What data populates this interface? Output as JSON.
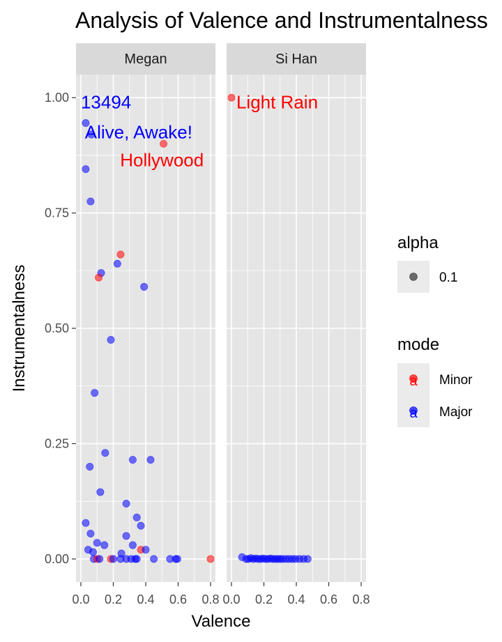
{
  "chart_data": {
    "type": "scatter",
    "title": "Analysis of Valence and Instrumentalness",
    "xlabel": "Valence",
    "ylabel": "Instrumentalness",
    "xlim": [
      -0.03,
      0.83
    ],
    "ylim": [
      -0.05,
      1.05
    ],
    "x_ticks": [
      "0.0",
      "0.2",
      "0.4",
      "0.6",
      "0.8"
    ],
    "x_tick_values": [
      0,
      0.2,
      0.4,
      0.6,
      0.8
    ],
    "y_ticks": [
      "0.00",
      "0.25",
      "0.50",
      "0.75",
      "1.00"
    ],
    "y_tick_values": [
      0,
      0.25,
      0.5,
      0.75,
      1.0
    ],
    "grid": true,
    "colors": {
      "Minor": "#ff0000",
      "Major": "#0000ff",
      "panel_bg": "#e5e5e5",
      "strip_bg": "#d9d9d9"
    },
    "legend": {
      "placement": "right",
      "alpha_title": "alpha",
      "alpha_label": "0.1",
      "mode_title": "mode",
      "mode_labels": [
        "Minor",
        "Major"
      ],
      "key_glyph": "a"
    },
    "facets": [
      {
        "name": "Megan",
        "points": [
          {
            "x": 0.03,
            "y": 0.945,
            "mode": "Major"
          },
          {
            "x": 0.065,
            "y": 0.92,
            "mode": "Major"
          },
          {
            "x": 0.51,
            "y": 0.9,
            "mode": "Minor"
          },
          {
            "x": 0.03,
            "y": 0.845,
            "mode": "Major"
          },
          {
            "x": 0.06,
            "y": 0.775,
            "mode": "Major"
          },
          {
            "x": 0.245,
            "y": 0.66,
            "mode": "Minor"
          },
          {
            "x": 0.225,
            "y": 0.64,
            "mode": "Major"
          },
          {
            "x": 0.125,
            "y": 0.62,
            "mode": "Major"
          },
          {
            "x": 0.11,
            "y": 0.61,
            "mode": "Minor"
          },
          {
            "x": 0.39,
            "y": 0.59,
            "mode": "Major"
          },
          {
            "x": 0.185,
            "y": 0.475,
            "mode": "Major"
          },
          {
            "x": 0.085,
            "y": 0.36,
            "mode": "Major"
          },
          {
            "x": 0.15,
            "y": 0.23,
            "mode": "Major"
          },
          {
            "x": 0.32,
            "y": 0.215,
            "mode": "Major"
          },
          {
            "x": 0.43,
            "y": 0.215,
            "mode": "Major"
          },
          {
            "x": 0.055,
            "y": 0.2,
            "mode": "Major"
          },
          {
            "x": 0.12,
            "y": 0.145,
            "mode": "Major"
          },
          {
            "x": 0.28,
            "y": 0.12,
            "mode": "Major"
          },
          {
            "x": 0.345,
            "y": 0.09,
            "mode": "Major"
          },
          {
            "x": 0.03,
            "y": 0.078,
            "mode": "Major"
          },
          {
            "x": 0.37,
            "y": 0.072,
            "mode": "Major"
          },
          {
            "x": 0.06,
            "y": 0.055,
            "mode": "Major"
          },
          {
            "x": 0.28,
            "y": 0.05,
            "mode": "Major"
          },
          {
            "x": 0.1,
            "y": 0.035,
            "mode": "Major"
          },
          {
            "x": 0.145,
            "y": 0.03,
            "mode": "Major"
          },
          {
            "x": 0.32,
            "y": 0.03,
            "mode": "Major"
          },
          {
            "x": 0.37,
            "y": 0.02,
            "mode": "Minor"
          },
          {
            "x": 0.4,
            "y": 0.02,
            "mode": "Major"
          },
          {
            "x": 0.045,
            "y": 0.02,
            "mode": "Major"
          },
          {
            "x": 0.075,
            "y": 0.015,
            "mode": "Major"
          },
          {
            "x": 0.25,
            "y": 0.012,
            "mode": "Major"
          },
          {
            "x": 0.08,
            "y": 0.0,
            "mode": "Major"
          },
          {
            "x": 0.1,
            "y": 0.0,
            "mode": "Minor"
          },
          {
            "x": 0.115,
            "y": 0.0,
            "mode": "Major"
          },
          {
            "x": 0.185,
            "y": 0.0,
            "mode": "Minor"
          },
          {
            "x": 0.2,
            "y": 0.0,
            "mode": "Major"
          },
          {
            "x": 0.245,
            "y": 0.0,
            "mode": "Major"
          },
          {
            "x": 0.28,
            "y": 0.0,
            "mode": "Major"
          },
          {
            "x": 0.31,
            "y": 0.0,
            "mode": "Major"
          },
          {
            "x": 0.335,
            "y": 0.0,
            "mode": "Major"
          },
          {
            "x": 0.345,
            "y": 0.0,
            "mode": "Major"
          },
          {
            "x": 0.45,
            "y": 0.0,
            "mode": "Major"
          },
          {
            "x": 0.55,
            "y": 0.0,
            "mode": "Major"
          },
          {
            "x": 0.585,
            "y": 0.0,
            "mode": "Major"
          },
          {
            "x": 0.595,
            "y": 0.0,
            "mode": "Major"
          },
          {
            "x": 0.8,
            "y": 0.0,
            "mode": "Minor"
          }
        ],
        "annotations": [
          {
            "text": "13494",
            "x": 0.0,
            "y": 0.99,
            "color": "#0000ff",
            "anchor": "start"
          },
          {
            "text": "Alive, Awake!",
            "x": 0.025,
            "y": 0.925,
            "color": "#0000ff",
            "anchor": "start"
          },
          {
            "text": "Hollywood",
            "x": 0.5,
            "y": 0.865,
            "color": "#ff0000",
            "anchor": "middle"
          }
        ]
      },
      {
        "name": "Si Han",
        "points": [
          {
            "x": 0.0,
            "y": 1.0,
            "mode": "Minor"
          },
          {
            "x": 0.065,
            "y": 0.004,
            "mode": "Major"
          },
          {
            "x": 0.09,
            "y": 0.0,
            "mode": "Major"
          },
          {
            "x": 0.105,
            "y": 0.0,
            "mode": "Major"
          },
          {
            "x": 0.12,
            "y": 0.002,
            "mode": "Major"
          },
          {
            "x": 0.135,
            "y": 0.0,
            "mode": "Major"
          },
          {
            "x": 0.15,
            "y": 0.001,
            "mode": "Major"
          },
          {
            "x": 0.165,
            "y": 0.0,
            "mode": "Major"
          },
          {
            "x": 0.18,
            "y": 0.0,
            "mode": "Major"
          },
          {
            "x": 0.195,
            "y": 0.001,
            "mode": "Major"
          },
          {
            "x": 0.21,
            "y": 0.0,
            "mode": "Major"
          },
          {
            "x": 0.225,
            "y": 0.0,
            "mode": "Major"
          },
          {
            "x": 0.24,
            "y": 0.001,
            "mode": "Major"
          },
          {
            "x": 0.255,
            "y": 0.0,
            "mode": "Major"
          },
          {
            "x": 0.27,
            "y": 0.0,
            "mode": "Major"
          },
          {
            "x": 0.285,
            "y": 0.0,
            "mode": "Major"
          },
          {
            "x": 0.3,
            "y": 0.0,
            "mode": "Major"
          },
          {
            "x": 0.315,
            "y": 0.0,
            "mode": "Major"
          },
          {
            "x": 0.335,
            "y": 0.0,
            "mode": "Major"
          },
          {
            "x": 0.355,
            "y": 0.0,
            "mode": "Major"
          },
          {
            "x": 0.375,
            "y": 0.0,
            "mode": "Major"
          },
          {
            "x": 0.395,
            "y": 0.0,
            "mode": "Major"
          },
          {
            "x": 0.42,
            "y": 0.0,
            "mode": "Major"
          },
          {
            "x": 0.445,
            "y": 0.0,
            "mode": "Major"
          },
          {
            "x": 0.47,
            "y": 0.0,
            "mode": "Major"
          }
        ],
        "annotations": [
          {
            "text": "Light Rain",
            "x": 0.03,
            "y": 0.99,
            "color": "#ff0000",
            "anchor": "start"
          }
        ]
      }
    ]
  }
}
